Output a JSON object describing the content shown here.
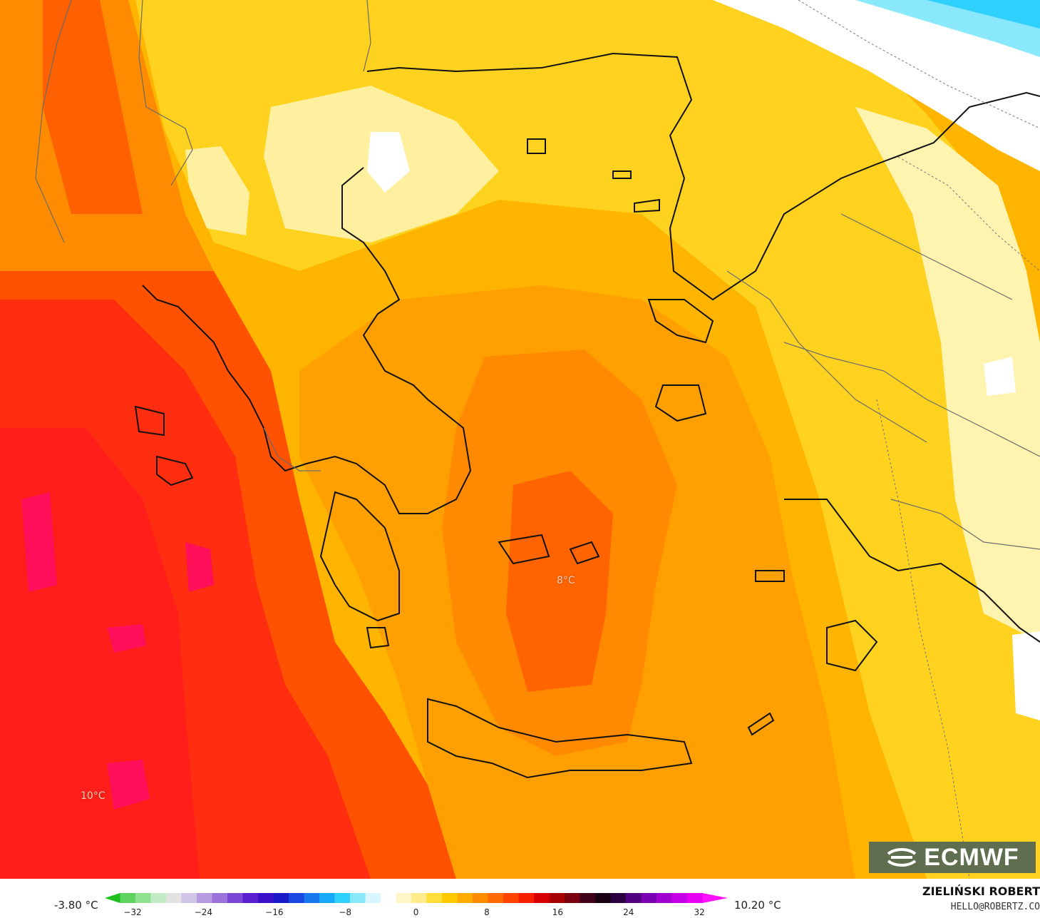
{
  "map": {
    "labels": [
      {
        "id": "label-aegean",
        "text": "8°C"
      },
      {
        "id": "label-ionian",
        "text": "10°C"
      }
    ],
    "logo_text": "ECMWF",
    "logo_icon": "ecmwf-wave-icon"
  },
  "legend": {
    "min_label": "-3.80 °C",
    "max_label": "10.20 °C",
    "ticks": [
      "−32",
      "−24",
      "−16",
      "−8",
      "0",
      "8",
      "16",
      "24",
      "32"
    ],
    "colors": [
      "#1fbf1f",
      "#5fd35f",
      "#8fe08f",
      "#c4ecc4",
      "#e2e2e2",
      "#cfc3e6",
      "#b79be0",
      "#9a72da",
      "#7b48d6",
      "#5a20d0",
      "#3a10c8",
      "#1a1ac8",
      "#1848e0",
      "#1878f0",
      "#18a8f8",
      "#30d0fc",
      "#8ae8fc",
      "#d8f6fd",
      "#ffffff",
      "#fff6c8",
      "#ffeb8a",
      "#ffde3a",
      "#ffc800",
      "#ffab00",
      "#ff8c00",
      "#ff6a00",
      "#ff4400",
      "#f52000",
      "#d80000",
      "#a80000",
      "#7a0010",
      "#40001a",
      "#180010",
      "#2a0040",
      "#500080",
      "#7800b0",
      "#a000d0",
      "#c800e8",
      "#e800f4",
      "#ff10ff"
    ],
    "colors_note": ""
  },
  "credit": {
    "author": "ZIELIŃSKI ROBERT",
    "email": "HELLO@ROBERTZ.CO"
  },
  "palette": {
    "sea_deep": "#ff1a10",
    "sea_warm": "#ff4a00",
    "land_orange": "#ffa000",
    "land_yellow": "#ffd21f",
    "land_pale": "#fff0a0",
    "cold_white": "#ffffff",
    "cold_blue": "#30d0fc"
  }
}
